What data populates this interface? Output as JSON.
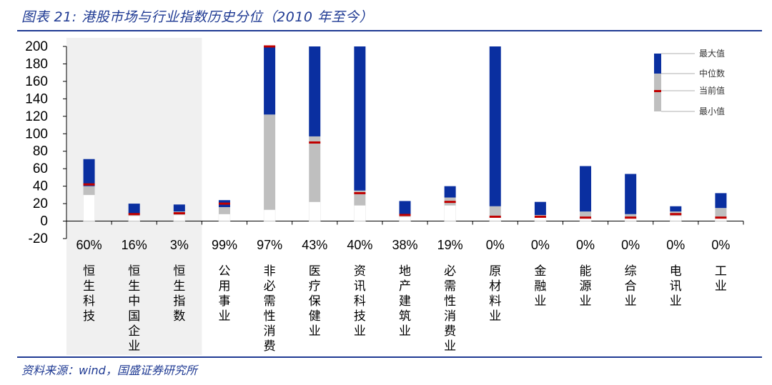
{
  "figure": {
    "title": "图表 21:  港股市场与行业指数历史分位（2010 年至今）",
    "source": "资料来源：wind，国盛证券研究所"
  },
  "colors": {
    "upper": "#0a2fa0",
    "lower": "#bfbfbf",
    "current": "#c00000",
    "highlight_bg": "#f0f0f0",
    "title_blue": "#1f3a93"
  },
  "chart_data": {
    "type": "bar",
    "subtype": "floating-stacked range (min → median grey, median → max blue, current red tick)",
    "ylim": [
      -20,
      200
    ],
    "yticks": [
      -20,
      0,
      20,
      40,
      60,
      80,
      100,
      120,
      140,
      160,
      180,
      200
    ],
    "grid": false,
    "legend": {
      "position": "top-right",
      "entries": [
        "最大值",
        "中位数",
        "当前值",
        "最小值"
      ]
    },
    "highlighted_categories": [
      "恒生科技",
      "恒生中国企业",
      "恒生指数"
    ],
    "categories": [
      "恒生科技",
      "恒生中国企业",
      "恒生指数",
      "公用事业",
      "非必需性消费",
      "医疗保健业",
      "资讯科技业",
      "地产建筑业",
      "必需性消费业",
      "原材料业",
      "金融业",
      "能源业",
      "综合业",
      "电讯业",
      "工业"
    ],
    "percentiles": [
      "60%",
      "16%",
      "3%",
      "99%",
      "97%",
      "43%",
      "40%",
      "38%",
      "19%",
      "0%",
      "0%",
      "0%",
      "0%",
      "0%",
      "0%"
    ],
    "series": [
      {
        "name": "最小值",
        "values": [
          30,
          6,
          7,
          8,
          13,
          22,
          18,
          5,
          18,
          5,
          4,
          4,
          3,
          6,
          3
        ]
      },
      {
        "name": "中位数",
        "values": [
          40,
          9,
          11,
          16,
          122,
          97,
          35,
          7,
          27,
          17,
          7,
          11,
          8,
          11,
          15
        ]
      },
      {
        "name": "最大值",
        "values": [
          71,
          20,
          19,
          24,
          200,
          200,
          200,
          23,
          40,
          200,
          22,
          63,
          54,
          17,
          32
        ]
      },
      {
        "name": "当前值",
        "values": [
          42,
          8,
          9,
          20,
          200,
          90,
          32,
          7,
          22,
          5,
          5,
          4,
          4,
          8,
          4
        ]
      }
    ]
  }
}
